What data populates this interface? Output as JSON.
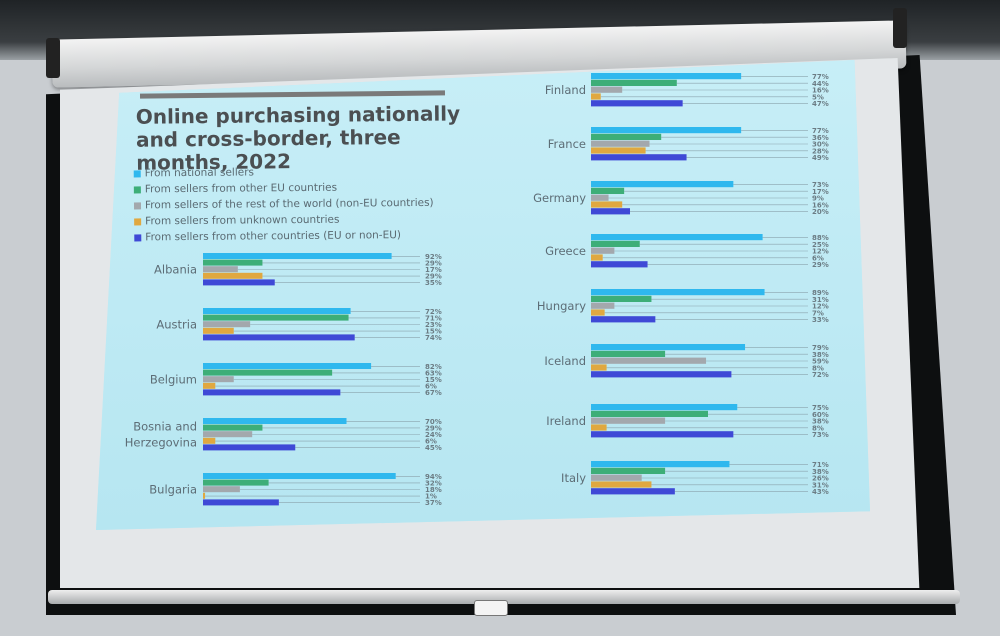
{
  "title": "Online purchasing nationally and cross-border, three months, 2022",
  "colors": {
    "national": "#2fb8ee",
    "eu": "#3dae78",
    "non_eu": "#a3a8ad",
    "unknown": "#e0a840",
    "other": "#3f49d6"
  },
  "legend": [
    {
      "key": "national",
      "label": "From national sellers"
    },
    {
      "key": "eu",
      "label": "From sellers from other EU countries"
    },
    {
      "key": "non_eu",
      "label": "From sellers of the rest of the world (non-EU countries)"
    },
    {
      "key": "unknown",
      "label": "From sellers from unknown countries"
    },
    {
      "key": "other",
      "label": "From sellers from other countries (EU or non-EU)"
    }
  ],
  "chart_data": {
    "type": "bar",
    "orientation": "horizontal",
    "title": "Online purchasing nationally and cross-border, three months, 2022",
    "series_order": [
      "national",
      "eu",
      "non_eu",
      "unknown",
      "other"
    ],
    "value_unit": "%",
    "xlim": [
      0,
      100
    ],
    "panels": [
      {
        "categories": [
          "Albania",
          "Austria",
          "Belgium",
          "Bosnia and Herzegovina",
          "Bulgaria"
        ],
        "values": [
          [
            92,
            29,
            17,
            29,
            35
          ],
          [
            72,
            71,
            23,
            15,
            74
          ],
          [
            82,
            63,
            15,
            6,
            67
          ],
          [
            70,
            29,
            24,
            6,
            45
          ],
          [
            94,
            32,
            18,
            1,
            37
          ]
        ]
      },
      {
        "categories": [
          "Finland",
          "France",
          "Germany",
          "Greece",
          "Hungary",
          "Iceland",
          "Ireland",
          "Italy"
        ],
        "values": [
          [
            77,
            44,
            16,
            5,
            47
          ],
          [
            77,
            36,
            30,
            28,
            49
          ],
          [
            73,
            17,
            9,
            16,
            20
          ],
          [
            88,
            25,
            12,
            6,
            29
          ],
          [
            89,
            31,
            12,
            7,
            33
          ],
          [
            79,
            38,
            59,
            8,
            72
          ],
          [
            75,
            60,
            38,
            8,
            73
          ],
          [
            71,
            38,
            26,
            31,
            43
          ]
        ]
      }
    ]
  }
}
